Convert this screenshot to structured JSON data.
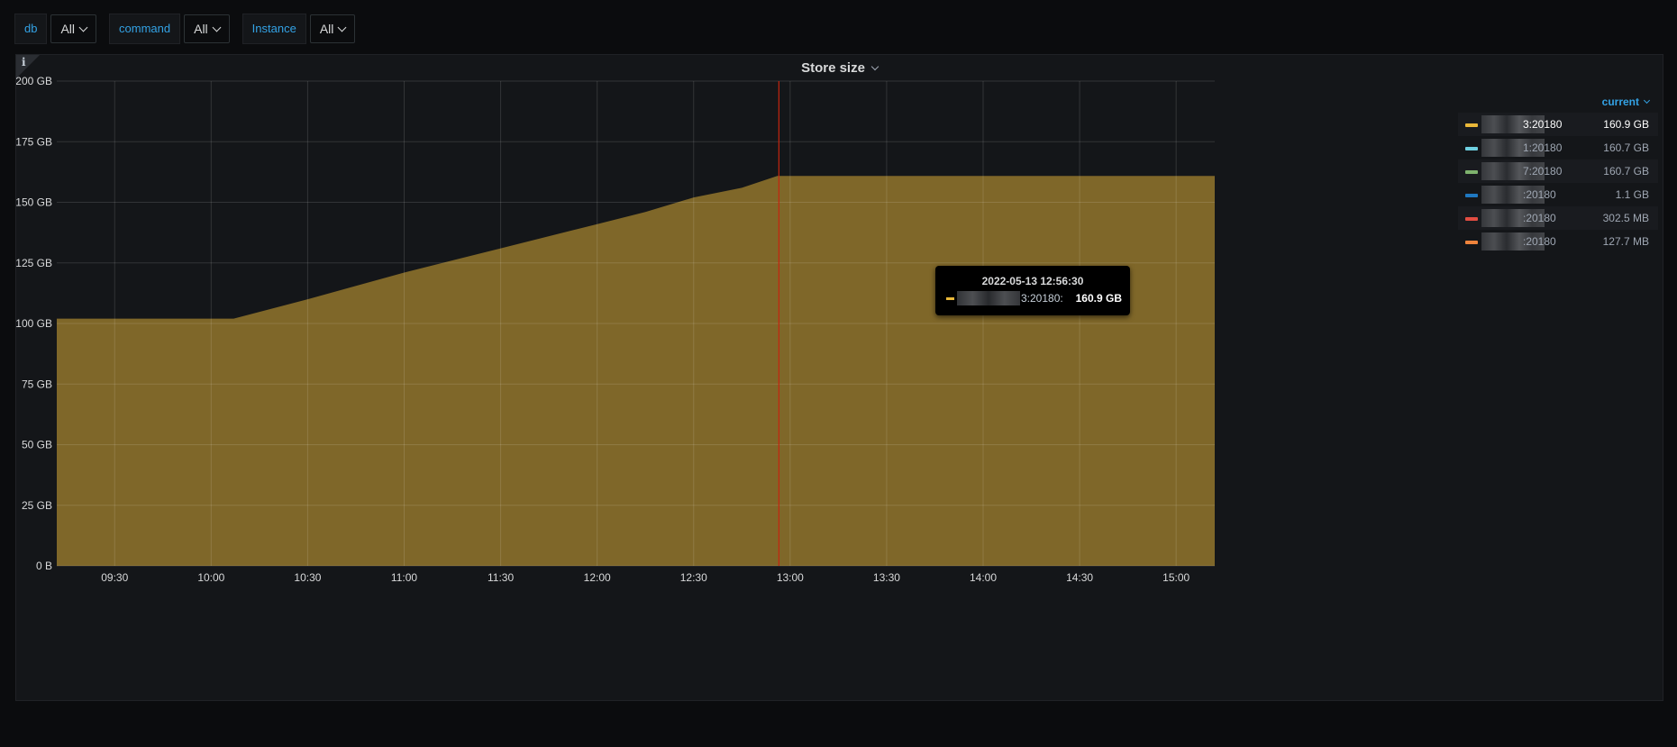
{
  "variables": [
    {
      "label": "db",
      "value": "All"
    },
    {
      "label": "command",
      "value": "All"
    },
    {
      "label": "Instance",
      "value": "All"
    }
  ],
  "panel": {
    "info_icon": "i",
    "title": "Store size"
  },
  "legend": {
    "column_header": "current",
    "items": [
      {
        "name": "3:20180",
        "value": "160.9 GB",
        "color": "#eab839",
        "highlighted": true
      },
      {
        "name": "1:20180",
        "value": "160.7 GB",
        "color": "#6ed0e0",
        "highlighted": false
      },
      {
        "name": "7:20180",
        "value": "160.7 GB",
        "color": "#7eb26d",
        "highlighted": false
      },
      {
        "name": ":20180",
        "value": "1.1 GB",
        "color": "#1f78c1",
        "highlighted": false
      },
      {
        "name": ":20180",
        "value": "302.5 MB",
        "color": "#e24d42",
        "highlighted": false
      },
      {
        "name": ":20180",
        "value": "127.7 MB",
        "color": "#ef843c",
        "highlighted": false
      }
    ]
  },
  "tooltip": {
    "time": "2022-05-13 12:56:30",
    "series_name": "3:20180:",
    "value": "160.9 GB"
  },
  "chart_data": {
    "type": "area",
    "title": "Store size",
    "xlabel": "",
    "ylabel": "",
    "y_ticks": [
      "0 B",
      "25 GB",
      "50 GB",
      "75 GB",
      "100 GB",
      "125 GB",
      "150 GB",
      "175 GB",
      "200 GB"
    ],
    "x_ticks": [
      "09:30",
      "10:00",
      "10:30",
      "11:00",
      "11:30",
      "12:00",
      "12:30",
      "13:00",
      "13:30",
      "14:00",
      "14:30",
      "15:00"
    ],
    "ylim": [
      0,
      200
    ],
    "xlim": [
      "09:12",
      "15:12"
    ],
    "grid": true,
    "series": [
      {
        "name": "3:20180",
        "color": "#eab839",
        "x": [
          "09:12",
          "10:07",
          "10:30",
          "11:00",
          "11:30",
          "12:00",
          "12:15",
          "12:30",
          "12:45",
          "12:56",
          "12:57",
          "15:12"
        ],
        "values": [
          102,
          102,
          110,
          121,
          131,
          141,
          146,
          152,
          156,
          160.9,
          160.9,
          160.9
        ]
      }
    ],
    "cursor_time": "12:56:30",
    "legend_position": "right"
  }
}
